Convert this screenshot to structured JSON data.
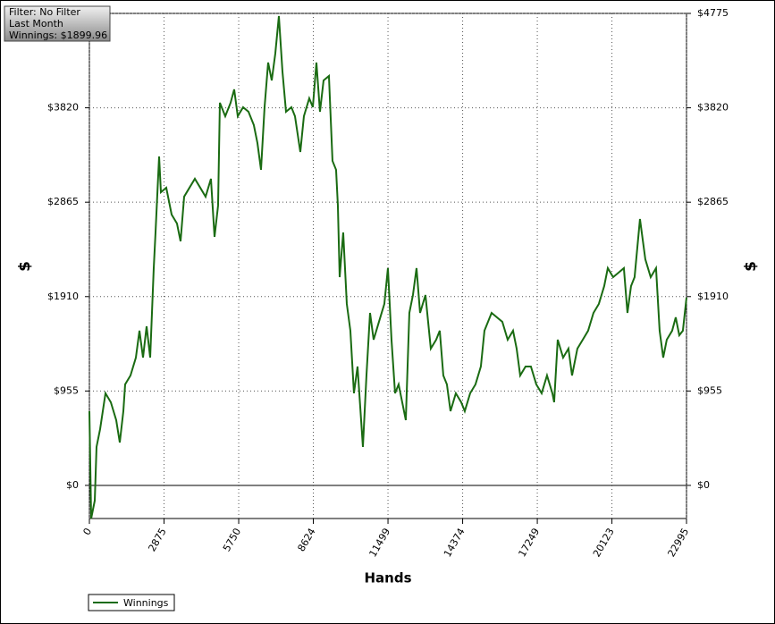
{
  "chart_data": {
    "type": "line",
    "info_lines": [
      "Filter: No Filter",
      "Last Month",
      "Winnings: $1899.96"
    ],
    "x_label": "Hands",
    "y_label": "$",
    "xlim": [
      0,
      22995
    ],
    "xticks": [
      0,
      2875,
      5750,
      8624,
      11499,
      14374,
      17249,
      20123,
      22995
    ],
    "ylim": [
      -335,
      4775
    ],
    "yticks": [
      {
        "value": 0,
        "label": "$0"
      },
      {
        "value": 955,
        "label": "$955"
      },
      {
        "value": 1910,
        "label": "$1910"
      },
      {
        "value": 2865,
        "label": "$2865"
      },
      {
        "value": 3820,
        "label": "$3820"
      },
      {
        "value": 4775,
        "label": "$4775"
      }
    ],
    "grid": true,
    "legend": "bottom-left",
    "x": [
      0,
      69,
      207,
      275,
      413,
      620,
      826,
      1033,
      1170,
      1308,
      1377,
      1583,
      1790,
      1928,
      2065,
      2203,
      2341,
      2478,
      2547,
      2685,
      2754,
      2960,
      3167,
      3373,
      3511,
      3649,
      3855,
      4062,
      4268,
      4475,
      4681,
      4819,
      4956,
      5025,
      5232,
      5438,
      5576,
      5714,
      5920,
      6127,
      6333,
      6471,
      6609,
      6746,
      6884,
      7022,
      7159,
      7297,
      7435,
      7572,
      7779,
      7917,
      8123,
      8261,
      8467,
      8605,
      8743,
      8880,
      9018,
      9225,
      9362,
      9500,
      9569,
      9638,
      9775,
      9913,
      10051,
      10188,
      10326,
      10464,
      10533,
      10670,
      10808,
      10946,
      11152,
      11359,
      11496,
      11634,
      11772,
      11909,
      12047,
      12185,
      12322,
      12460,
      12598,
      12735,
      12942,
      13148,
      13355,
      13493,
      13630,
      13768,
      13906,
      14112,
      14319,
      14456,
      14663,
      14869,
      15076,
      15214,
      15489,
      15696,
      15902,
      16109,
      16315,
      16453,
      16590,
      16797,
      17003,
      17210,
      17417,
      17623,
      17830,
      17898,
      18036,
      18243,
      18449,
      18587,
      18793,
      19000,
      19206,
      19413,
      19619,
      19826,
      19964,
      20170,
      20377,
      20583,
      20721,
      20859,
      20996,
      21203,
      21409,
      21616,
      21822,
      21960,
      22098,
      22235,
      22442,
      22580,
      22717,
      22855,
      22995
    ],
    "series": [
      {
        "name": "Winnings",
        "color": "#1a6b12",
        "values": [
          751,
          -335,
          -154,
          389,
          570,
          932,
          841,
          660,
          434,
          751,
          1022,
          1112,
          1293,
          1565,
          1293,
          1610,
          1293,
          2198,
          2559,
          3328,
          2966,
          3012,
          2740,
          2650,
          2469,
          2921,
          3012,
          3102,
          3012,
          2921,
          3102,
          2514,
          2831,
          3871,
          3735,
          3871,
          4006,
          3735,
          3826,
          3780,
          3645,
          3464,
          3193,
          3826,
          4278,
          4097,
          4368,
          4748,
          4187,
          3780,
          3826,
          3735,
          3373,
          3735,
          3916,
          3826,
          4278,
          3780,
          4097,
          4142,
          3283,
          3193,
          2831,
          2107,
          2559,
          1836,
          1565,
          932,
          1203,
          660,
          389,
          1112,
          1745,
          1474,
          1655,
          1836,
          2198,
          1474,
          932,
          1022,
          841,
          660,
          1745,
          1926,
          2198,
          1745,
          1926,
          1384,
          1474,
          1565,
          1112,
          1022,
          751,
          932,
          841,
          751,
          932,
          1022,
          1203,
          1565,
          1745,
          1700,
          1655,
          1474,
          1565,
          1384,
          1112,
          1203,
          1203,
          1022,
          932,
          1112,
          932,
          841,
          1474,
          1293,
          1384,
          1112,
          1384,
          1474,
          1565,
          1745,
          1836,
          2017,
          2198,
          2107,
          2152,
          2198,
          1745,
          2017,
          2107,
          2695,
          2288,
          2107,
          2198,
          1565,
          1293,
          1474,
          1565,
          1700,
          1519,
          1565,
          1899.96
        ]
      }
    ]
  }
}
